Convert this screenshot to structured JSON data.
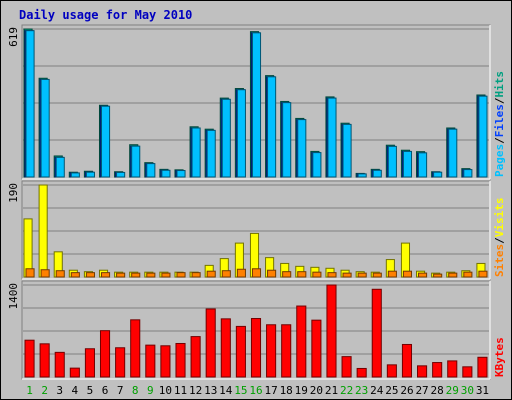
{
  "chart_data": {
    "type": "bar",
    "title": "Daily usage for May 2010",
    "categories": [
      "1",
      "2",
      "3",
      "4",
      "5",
      "6",
      "7",
      "8",
      "9",
      "10",
      "11",
      "12",
      "13",
      "14",
      "15",
      "16",
      "17",
      "18",
      "19",
      "20",
      "21",
      "22",
      "23",
      "24",
      "25",
      "26",
      "27",
      "28",
      "29",
      "30",
      "31"
    ],
    "weekend_days": [
      "1",
      "2",
      "8",
      "9",
      "15",
      "16",
      "22",
      "23",
      "29",
      "30"
    ],
    "panels": [
      {
        "id": "pages-files-hits",
        "ymax_label": "619",
        "ymax": 619,
        "legend": [
          "Pages",
          "/",
          "Files",
          "/",
          "Hits"
        ],
        "legend_colors": [
          "#00c0ff",
          "#000000",
          "#0040ff",
          "#000000",
          "#00a080"
        ],
        "series": [
          {
            "name": "Hits",
            "color": "#00a080",
            "values": [
              619,
              413,
              88,
              20,
              24,
              300,
              22,
              135,
              60,
              32,
              30,
              210,
              200,
              330,
              370,
              608,
              424,
              316,
              245,
              107,
              335,
              225,
              15,
              32,
              133,
              112,
              106,
              22,
              205,
              35,
              343
            ]
          },
          {
            "name": "Files",
            "color": "#0040ff",
            "values": [
              612,
              408,
              82,
              17,
              20,
              296,
              19,
              129,
              56,
              28,
              27,
              205,
              195,
              325,
              365,
              603,
              419,
              311,
              240,
              102,
              330,
              220,
              13,
              28,
              128,
              107,
              101,
              20,
              200,
              31,
              338
            ]
          },
          {
            "name": "Pages",
            "color": "#00c0ff",
            "values": [
              612,
              408,
              82,
              17,
              20,
              296,
              19,
              129,
              56,
              28,
              27,
              205,
              195,
              325,
              365,
              603,
              419,
              311,
              240,
              102,
              330,
              220,
              13,
              28,
              128,
              107,
              101,
              20,
              200,
              31,
              338
            ]
          }
        ]
      },
      {
        "id": "sites-visits",
        "ymax_label": "190",
        "ymax": 190,
        "legend": [
          "Sites",
          "/",
          "Visits"
        ],
        "legend_colors": [
          "#ff8000",
          "#000000",
          "#ffff00"
        ],
        "series": [
          {
            "name": "Visits",
            "color": "#ffff00",
            "values": [
              120,
              190,
              52,
              14,
              11,
              14,
              10,
              10,
              10,
              10,
              10,
              10,
              24,
              38,
              70,
              90,
              40,
              28,
              22,
              20,
              18,
              14,
              11,
              10,
              36,
              70,
              12,
              8,
              10,
              13,
              28
            ]
          },
          {
            "name": "Sites",
            "color": "#ff8000",
            "values": [
              17,
              15,
              13,
              9,
              9,
              9,
              8,
              8,
              8,
              8,
              9,
              9,
              12,
              13,
              16,
              17,
              14,
              11,
              11,
              10,
              9,
              8,
              8,
              8,
              12,
              12,
              8,
              6,
              8,
              10,
              12
            ]
          }
        ]
      },
      {
        "id": "kbytes",
        "ymax_label": "1400",
        "ymax": 1400,
        "legend": [
          "KBytes"
        ],
        "legend_colors": [
          "#ff0000"
        ],
        "series": [
          {
            "name": "KBytes",
            "color": "#ff0000",
            "values": [
              560,
              505,
              375,
              135,
              430,
              705,
              445,
              870,
              485,
              475,
              510,
              615,
              1035,
              885,
              770,
              890,
              795,
              795,
              1080,
              865,
              1400,
              310,
              130,
              1335,
              185,
              495,
              170,
              220,
              245,
              155,
              300
            ]
          }
        ]
      }
    ]
  }
}
